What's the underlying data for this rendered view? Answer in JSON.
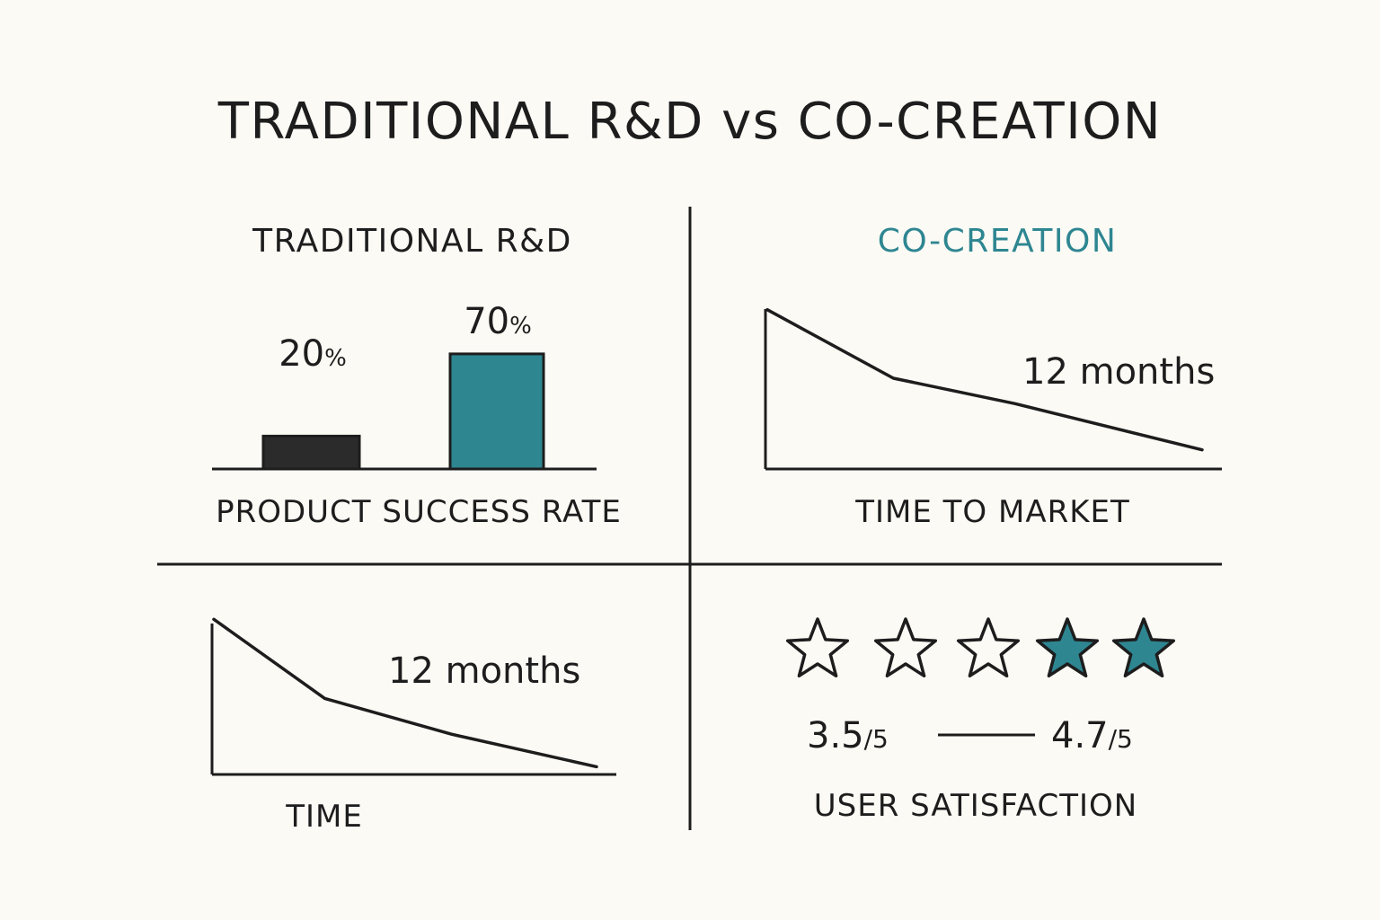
{
  "title": "TRADITIONAL R&D vs CO-CREATION",
  "colors": {
    "ink": "#1d1d1d",
    "teal": "#2e8691",
    "bar_dark": "#2b2b2b",
    "background": "#fbfaf5"
  },
  "chart_data": [
    {
      "type": "bar",
      "panel_title": "TRADITIONAL R&D",
      "xlabel": "PRODUCT SUCCESS RATE",
      "categories": [
        "",
        ""
      ],
      "values": [
        20,
        70
      ],
      "value_labels": [
        {
          "number": "20",
          "unit": "%"
        },
        {
          "number": "70",
          "unit": "%"
        }
      ],
      "bar_colors": [
        "#2b2b2b",
        "#2e8691"
      ],
      "ylim": [
        0,
        100
      ]
    },
    {
      "type": "line",
      "panel_title": "CO-CREATION",
      "xlabel": "TIME TO MARKET",
      "annotation": "12 months",
      "x": [
        0,
        0.29,
        0.57,
        1.0
      ],
      "y": [
        1.0,
        0.57,
        0.41,
        0.12
      ],
      "ylim": [
        0,
        1.1
      ]
    },
    {
      "type": "line",
      "xlabel": "TIME",
      "annotation": "12 months",
      "x": [
        0,
        0.29,
        0.62,
        1.0
      ],
      "y": [
        1.0,
        0.49,
        0.26,
        0.05
      ],
      "ylim": [
        0,
        1.1
      ]
    },
    {
      "type": "rating",
      "xlabel": "USER SATISFACTION",
      "stars_total": 5,
      "stars_filled": 2,
      "from": {
        "number": "3.5",
        "unit": "/5"
      },
      "to": {
        "number": "4.7",
        "unit": "/5"
      }
    }
  ]
}
